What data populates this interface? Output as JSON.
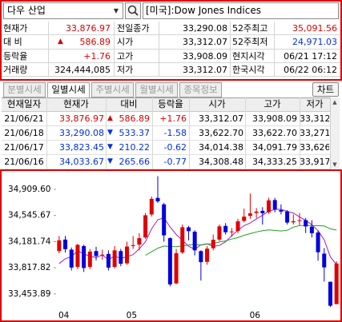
{
  "search": {
    "query": "다우 산업",
    "symbol": "[미국]:Dow Jones Indices"
  },
  "info": {
    "change_arrow": "▲",
    "rows": [
      [
        "현재가",
        "33,876.97",
        "전일종가",
        "33,290.08",
        "52주최고",
        "35,091.56"
      ],
      [
        "대 비",
        "586.89",
        "시가",
        "33,312.07",
        "52주최저",
        "24,971.03"
      ],
      [
        "등락율",
        "+1.76",
        "고가",
        "33,908.09",
        "현지시각",
        "06/21 17:12"
      ],
      [
        "거래량",
        "324,444,085",
        "저가",
        "33,312.07",
        "한국시각",
        "06/22 06:12"
      ]
    ]
  },
  "tabs": [
    "분별시세",
    "일별시세",
    "주별시세",
    "월별시세",
    "종목정보"
  ],
  "active_tab": 1,
  "chart_button": "차트",
  "table": {
    "header": [
      "현재일자",
      "현재가",
      "대비",
      "등락율",
      "시가",
      "고가",
      "저가"
    ],
    "rows": [
      {
        "color": "#d80000",
        "cells": [
          "21/06/21",
          "33,876.97",
          "▲",
          "586.89",
          "+1.76",
          "33,312.07",
          "33,908.09",
          "33,312.07"
        ]
      },
      {
        "color": "#0030e0",
        "cells": [
          "21/06/18",
          "33,290.08",
          "▼",
          "533.37",
          "-1.58",
          "33,622.70",
          "33,622.70",
          "33,271.93"
        ]
      },
      {
        "color": "#0030e0",
        "cells": [
          "21/06/17",
          "33,823.45",
          "▼",
          "210.22",
          "-0.62",
          "34,014.38",
          "34,091.79",
          "33,626.61"
        ]
      },
      {
        "color": "#0030e0",
        "cells": [
          "21/06/16",
          "34,033.67",
          "▼",
          "265.66",
          "-0.77",
          "34,308.48",
          "34,333.25",
          "33,917.11"
        ]
      }
    ]
  },
  "chart_data": {
    "type": "candlestick",
    "categories": [
      "04",
      null,
      null,
      null,
      null,
      null,
      null,
      null,
      null,
      null,
      null,
      "05",
      null,
      null,
      null,
      null,
      null,
      null,
      null,
      null,
      null,
      null,
      null,
      null,
      null,
      null,
      null,
      null,
      null,
      null,
      null,
      "06",
      null,
      null,
      null,
      null,
      null,
      null,
      null,
      null,
      null,
      null,
      null,
      null,
      null,
      null
    ],
    "open": [
      34050,
      34210,
      34070,
      33830,
      34120,
      33830,
      34050,
      33990,
      34010,
      33830,
      34050,
      33880,
      34120,
      34140,
      34240,
      34560,
      34790,
      34700,
      34230,
      33600,
      34030,
      34380,
      34320,
      34050,
      33900,
      34090,
      34210,
      34400,
      34320,
      34330,
      34470,
      34540,
      34580,
      34610,
      34590,
      34760,
      34620,
      34600,
      34450,
      34470,
      34480,
      34390,
      34308.48,
      34014.38,
      33622.7,
      33312.07
    ],
    "high": [
      34260,
      34260,
      34100,
      34150,
      34140,
      34080,
      34110,
      34070,
      34060,
      34120,
      34080,
      34180,
      34260,
      34300,
      34580,
      34810,
      35091.56,
      34720,
      34240,
      34080,
      34420,
      34400,
      34340,
      34060,
      34120,
      34280,
      34420,
      34440,
      34370,
      34500,
      34640,
      34850,
      34650,
      34660,
      34790,
      34790,
      34700,
      34620,
      34560,
      34580,
      34510,
      34480,
      34333.25,
      34091.79,
      33622.7,
      33908.09
    ],
    "low": [
      34020,
      34030,
      33780,
      33800,
      33760,
      33800,
      33920,
      33930,
      33780,
      33810,
      33840,
      33860,
      34080,
      34060,
      34220,
      34530,
      34720,
      34180,
      33560,
      33590,
      34010,
      34200,
      33990,
      33640,
      33860,
      34060,
      34190,
      34280,
      34250,
      34300,
      34450,
      34500,
      34510,
      34420,
      34570,
      34590,
      34560,
      34420,
      34420,
      34410,
      34300,
      34240,
      33917.11,
      33626.61,
      33271.93,
      33312.07
    ],
    "close": [
      34200,
      34077,
      33821,
      34137,
      33815,
      34043,
      33981,
      34000,
      33820,
      34060,
      33874,
      34113,
      34133,
      34230,
      34548,
      34777,
      34742,
      34269,
      33587,
      34021,
      34382,
      34327,
      34060,
      33896,
      34084,
      34208,
      34394,
      34312,
      34323,
      34464,
      34529,
      34575,
      34600,
      34577,
      34756,
      34630,
      34599,
      34447,
      34466,
      34480,
      34393,
      34299,
      34033.67,
      33823.45,
      33290.08,
      33876.97
    ],
    "up_color": "#e00000",
    "down_color": "#0000e0",
    "series": [
      {
        "color": "#a020c0",
        "values": [
          33877,
          33944,
          33973,
          34054,
          34010,
          33979,
          33959,
          33995,
          33932,
          33981,
          33947,
          33973,
          34000,
          34082,
          34180,
          34360,
          34486,
          34513,
          34385,
          34279,
          34200,
          34117,
          34075,
          34137,
          34150,
          34115,
          34128,
          34179,
          34264,
          34340,
          34404,
          34441,
          34498,
          34549,
          34607,
          34628,
          34632,
          34602,
          34580,
          34524,
          34477,
          34417,
          34334,
          34206,
          33968,
          33864
        ]
      },
      {
        "color": "#20a020",
        "values": [
          null,
          null,
          null,
          null,
          null,
          null,
          null,
          null,
          null,
          null,
          null,
          null,
          null,
          null,
          33992,
          34041,
          34091,
          34120,
          34113,
          34112,
          34122,
          34134,
          34146,
          34134,
          34147,
          34156,
          34176,
          34192,
          34217,
          34237,
          34270,
          34293,
          34316,
          34334,
          34344,
          34337,
          34330,
          34339,
          34383,
          34405,
          34406,
          34405,
          34403,
          34400,
          34360,
          34343
        ]
      }
    ],
    "ylim": [
      33230,
      35120
    ],
    "yticks": [
      {
        "value": 34909.6,
        "label": "34,909.60"
      },
      {
        "value": 34545.67,
        "label": "34,545.67"
      },
      {
        "value": 34181.74,
        "label": "34,181.74"
      },
      {
        "value": 33817.82,
        "label": "33,817.82"
      },
      {
        "value": 33453.89,
        "label": "33,453.89"
      }
    ]
  }
}
